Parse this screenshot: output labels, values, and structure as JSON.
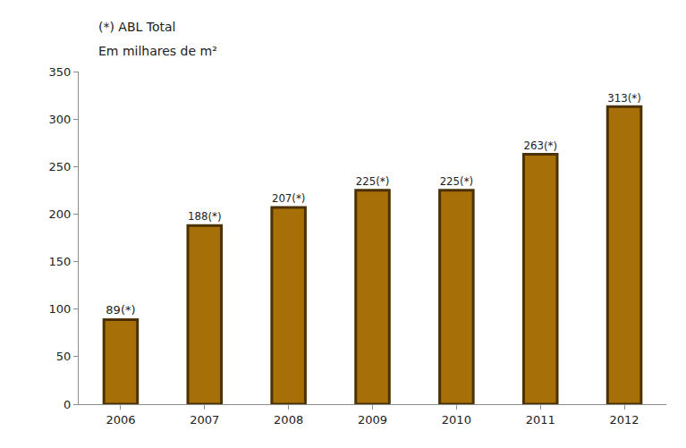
{
  "chart_data": {
    "type": "bar",
    "title": "(*) ABL Total",
    "subtitle": "Em milhares de m²",
    "categories": [
      "2006",
      "2007",
      "2008",
      "2009",
      "2010",
      "2011",
      "2012"
    ],
    "values": [
      89,
      188,
      207,
      225,
      225,
      263,
      313
    ],
    "value_labels": [
      "89(*)",
      "188(*)",
      "207(*)",
      "225(*)",
      "225(*)",
      "263(*)",
      "313(*)"
    ],
    "color": "#a66f08",
    "ylim": [
      0,
      350
    ],
    "yticks": [
      0,
      50,
      100,
      150,
      200,
      250,
      300,
      350
    ],
    "grid": false,
    "data_labels": true
  }
}
